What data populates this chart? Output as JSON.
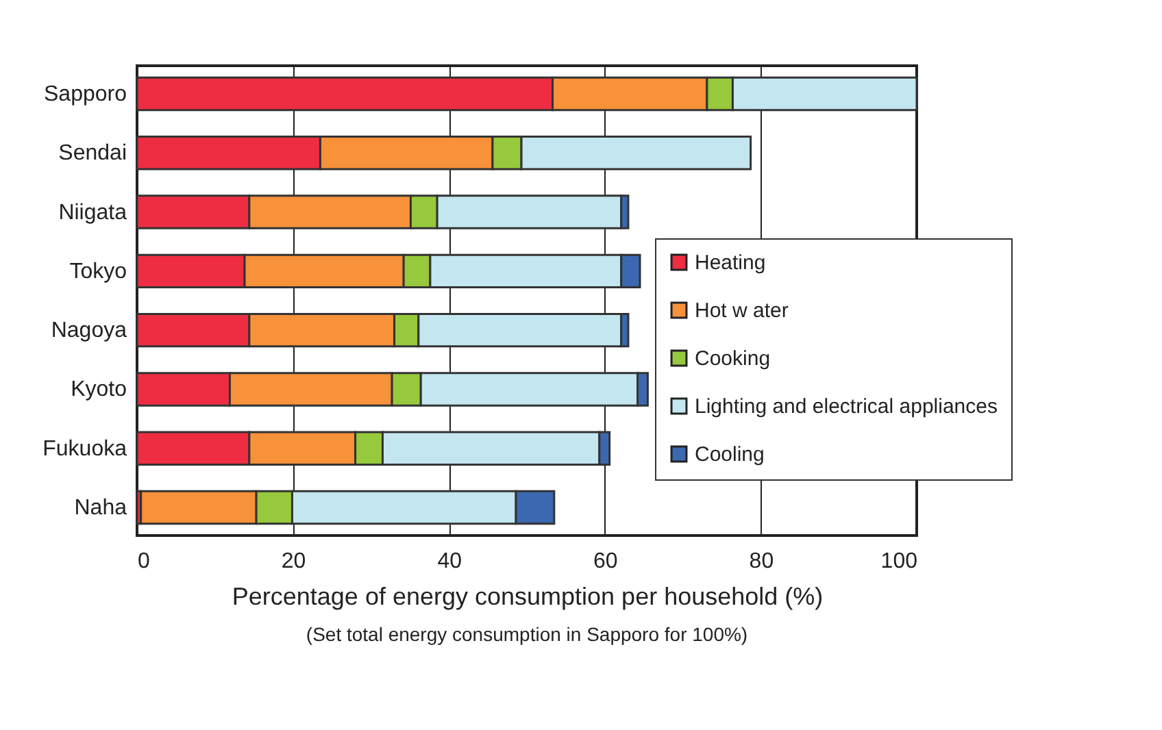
{
  "chart_data": {
    "type": "bar",
    "orientation": "horizontal",
    "stacked": true,
    "categories": [
      "Sapporo",
      "Sendai",
      "Niigata",
      "Tokyo",
      "Nagoya",
      "Kyoto",
      "Fukuoka",
      "Naha"
    ],
    "series": [
      {
        "name": "Heating",
        "color": "#ee2d42",
        "values": [
          53.3,
          23.5,
          14.4,
          13.8,
          14.4,
          11.9,
          14.4,
          0.5
        ]
      },
      {
        "name": "Hot w ater",
        "color": "#f7913a",
        "values": [
          19.8,
          22.1,
          20.7,
          20.4,
          18.6,
          20.8,
          13.6,
          14.8
        ]
      },
      {
        "name": "Cooking",
        "color": "#97c93c",
        "values": [
          3.3,
          3.7,
          3.4,
          3.4,
          3.1,
          3.7,
          3.5,
          4.6
        ]
      },
      {
        "name": "Lighting and electrical appliances",
        "color": "#c4e6f0",
        "values": [
          23.6,
          29.4,
          23.6,
          24.5,
          26.0,
          27.8,
          27.8,
          28.7
        ]
      },
      {
        "name": "Cooling",
        "color": "#3b68b0",
        "values": [
          null,
          null,
          0.9,
          2.4,
          0.9,
          1.3,
          1.3,
          4.9
        ]
      }
    ],
    "xlim": [
      0,
      100
    ],
    "xticks": [
      0,
      20,
      40,
      60,
      80,
      100
    ],
    "grid": "x",
    "legend": "right",
    "xlabel": "Percentage of energy consumption per household (%)",
    "annotations": [
      "(Set total energy consumption in Sapporo for 100%)"
    ]
  }
}
